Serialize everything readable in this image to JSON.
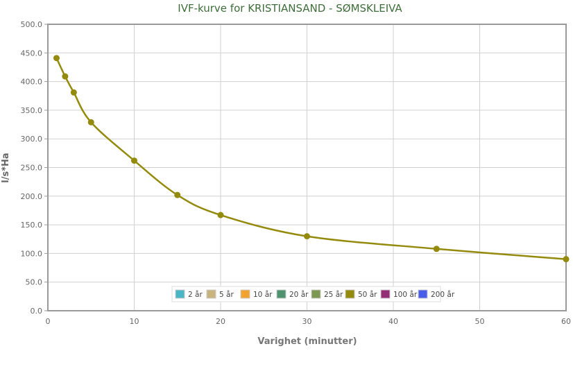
{
  "chart_data": {
    "type": "line",
    "title": "IVF-kurve for KRISTIANSAND - SØMSKLEIVA",
    "xlabel": "Varighet (minutter)",
    "ylabel": "l/s*Ha",
    "xlim": [
      0,
      60
    ],
    "ylim": [
      0,
      500
    ],
    "x_ticks": [
      "0",
      "10",
      "20",
      "30",
      "40",
      "50",
      "60"
    ],
    "y_ticks": [
      "0.0",
      "50.0",
      "100.0",
      "150.0",
      "200.0",
      "250.0",
      "300.0",
      "350.0",
      "400.0",
      "450.0",
      "500.0"
    ],
    "grid": true,
    "legend_placement": "bottom-center-inside",
    "legend": [
      {
        "name": "2 år",
        "color": "#4ab5c4"
      },
      {
        "name": "5 år",
        "color": "#c9b47f"
      },
      {
        "name": "10 år",
        "color": "#f0a32e"
      },
      {
        "name": "20 år",
        "color": "#4e9270"
      },
      {
        "name": "25 år",
        "color": "#7d9850"
      },
      {
        "name": "50 år",
        "color": "#948a0c"
      },
      {
        "name": "100 år",
        "color": "#952f75"
      },
      {
        "name": "200 år",
        "color": "#4a5de8"
      }
    ],
    "series": [
      {
        "name": "50 år",
        "color": "#948a0c",
        "x": [
          1,
          2,
          3,
          5,
          10,
          15,
          20,
          30,
          45,
          60
        ],
        "y": [
          441,
          409,
          381,
          329,
          262,
          202,
          167,
          130,
          108,
          90
        ]
      }
    ]
  }
}
